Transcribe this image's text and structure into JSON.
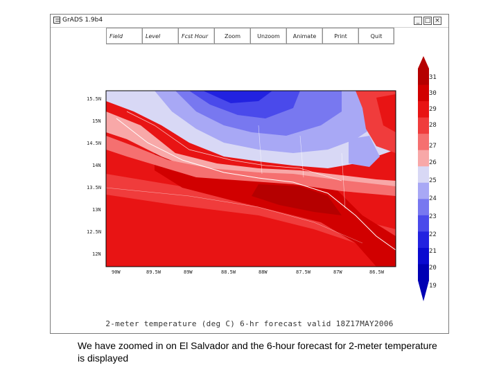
{
  "window": {
    "title": "GrADS 1.9b4",
    "controls": {
      "minimize": "_",
      "maximize": "□",
      "close": "×"
    }
  },
  "toolbar": {
    "buttons": [
      {
        "label": "Field"
      },
      {
        "label": "Level"
      },
      {
        "label": "Fcst Hour"
      },
      {
        "label": "Zoom"
      },
      {
        "label": "Unzoom"
      },
      {
        "label": "Animate"
      },
      {
        "label": "Print"
      },
      {
        "label": "Quit"
      }
    ]
  },
  "map": {
    "lat_labels": [
      "15.5N",
      "15N",
      "14.5N",
      "14N",
      "13.5N",
      "13N",
      "12.5N",
      "12N"
    ],
    "lon_labels": [
      "90W",
      "89.5W",
      "89W",
      "88.5W",
      "88W",
      "87.5W",
      "87W",
      "86.5W"
    ]
  },
  "colorbar": {
    "levels": [
      "31",
      "30",
      "29",
      "28",
      "27",
      "26",
      "25",
      "24",
      "23",
      "22",
      "21",
      "20",
      "19"
    ],
    "colors": [
      "#b50000",
      "#d10000",
      "#e81414",
      "#f03c3c",
      "#f57070",
      "#f8a8a8",
      "#d8d8f5",
      "#a8a8f5",
      "#7878f0",
      "#4a4aeb",
      "#2222e0",
      "#0a0ad0",
      "#0000b4"
    ]
  },
  "plot_caption": "2-meter temperature (deg C) 6-hr forecast valid 18Z17MAY2006",
  "slide_caption": "We have zoomed in on El Salvador and the 6-hour forecast for 2-meter temperature is displayed"
}
